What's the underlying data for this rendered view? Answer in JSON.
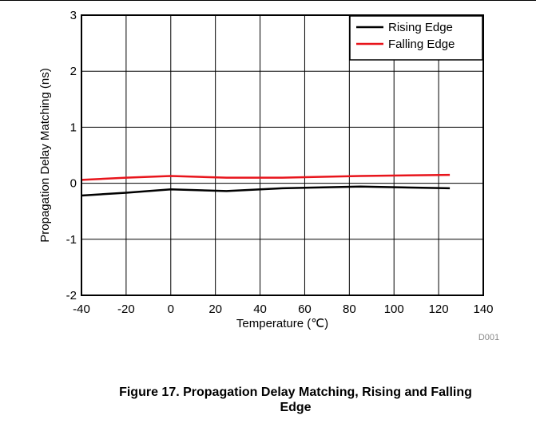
{
  "chart_data": {
    "type": "line",
    "xlabel": "Temperature (℃)",
    "ylabel": "Propagation Delay Matching (ns)",
    "xlim": [
      -40,
      140
    ],
    "ylim": [
      -2,
      3
    ],
    "xticks": [
      -40,
      -20,
      0,
      20,
      40,
      60,
      80,
      100,
      120,
      140
    ],
    "yticks": [
      -2,
      -1,
      0,
      1,
      2,
      3
    ],
    "grid": true,
    "legend_position": "top-right",
    "series": [
      {
        "name": "Rising Edge",
        "color": "#000000",
        "x": [
          -40,
          -20,
          0,
          25,
          50,
          85,
          125
        ],
        "y": [
          -0.22,
          -0.17,
          -0.11,
          -0.14,
          -0.09,
          -0.06,
          -0.09
        ]
      },
      {
        "name": "Falling Edge",
        "color": "#e8141b",
        "x": [
          -40,
          -20,
          0,
          25,
          50,
          85,
          125
        ],
        "y": [
          0.06,
          0.1,
          0.13,
          0.1,
          0.1,
          0.13,
          0.15
        ]
      }
    ],
    "code": "D001"
  },
  "caption": {
    "line1": "Figure 17. Propagation Delay Matching, Rising and Falling",
    "line2": "Edge"
  }
}
